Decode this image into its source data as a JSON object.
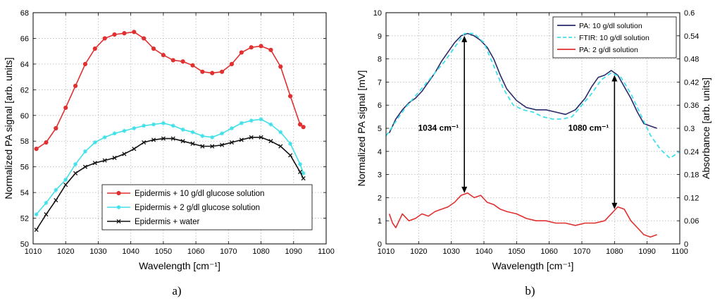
{
  "chart_data": [
    {
      "type": "line",
      "caption": "a)",
      "xlabel": "Wavelength [cm⁻¹]",
      "ylabel": "Normalized PA signal [arb. units]",
      "xlim": [
        1010,
        1100
      ],
      "ylim": [
        50,
        68
      ],
      "xticks": [
        1010,
        1020,
        1030,
        1040,
        1050,
        1060,
        1070,
        1080,
        1090,
        1100
      ],
      "yticks": [
        50,
        52,
        54,
        56,
        58,
        60,
        62,
        64,
        66,
        68
      ],
      "grid": true,
      "legend_position": "bottom-right",
      "x": [
        1011,
        1014,
        1017,
        1020,
        1023,
        1026,
        1029,
        1032,
        1035,
        1038,
        1041,
        1044,
        1047,
        1050,
        1053,
        1056,
        1059,
        1062,
        1065,
        1068,
        1071,
        1074,
        1077,
        1080,
        1083,
        1086,
        1089,
        1092,
        1093
      ],
      "series": [
        {
          "name": "Epidermis + 10 g/dl glucose solution",
          "color": "#e03030",
          "marker": "dot",
          "values": [
            57.4,
            57.9,
            59.0,
            60.6,
            62.3,
            64.0,
            65.2,
            66.0,
            66.3,
            66.4,
            66.5,
            66.0,
            65.2,
            64.7,
            64.3,
            64.2,
            63.9,
            63.4,
            63.3,
            63.4,
            64.0,
            64.9,
            65.3,
            65.4,
            65.1,
            63.8,
            61.5,
            59.3,
            59.1
          ]
        },
        {
          "name": "Epidermis + 2 g/dl glucose solution",
          "color": "#40e0e8",
          "marker": "star",
          "values": [
            52.3,
            53.2,
            54.2,
            55.0,
            56.2,
            57.2,
            57.9,
            58.3,
            58.6,
            58.8,
            59.0,
            59.2,
            59.3,
            59.4,
            59.2,
            58.9,
            58.7,
            58.4,
            58.3,
            58.6,
            59.0,
            59.4,
            59.6,
            59.7,
            59.3,
            58.7,
            57.8,
            56.2,
            55.5
          ]
        },
        {
          "name": "Epidermis + water",
          "color": "#111111",
          "marker": "x",
          "values": [
            51.1,
            52.3,
            53.4,
            54.6,
            55.5,
            56.0,
            56.3,
            56.5,
            56.7,
            57.0,
            57.4,
            57.9,
            58.1,
            58.2,
            58.2,
            58.0,
            57.8,
            57.6,
            57.6,
            57.7,
            57.9,
            58.1,
            58.3,
            58.3,
            58.0,
            57.6,
            56.9,
            55.6,
            55.1
          ]
        }
      ]
    },
    {
      "type": "line",
      "caption": "b)",
      "xlabel": "Wavelength [cm⁻¹]",
      "ylabel": "Normalized PA signal [mV]",
      "y2label": "Absorbance [arb. units]",
      "xlim": [
        1010,
        1100
      ],
      "ylim": [
        0,
        10
      ],
      "y2lim": [
        0,
        0.6
      ],
      "xticks": [
        1010,
        1020,
        1030,
        1040,
        1050,
        1060,
        1070,
        1080,
        1090,
        1100
      ],
      "yticks": [
        0,
        1,
        2,
        3,
        4,
        5,
        6,
        7,
        8,
        9,
        10
      ],
      "y2ticks": [
        "0",
        "0.06",
        "0.12",
        "0.18",
        "0.24",
        "0.3",
        "0.36",
        "0.42",
        "0.48",
        "0.54",
        "0.6"
      ],
      "grid": true,
      "legend_position": "top-right",
      "annotations": [
        {
          "text": "1034 cm⁻¹",
          "x": 1034
        },
        {
          "text": "1080 cm⁻¹",
          "x": 1080
        }
      ],
      "arrows": [
        {
          "x": 1034,
          "y_from": 2.2,
          "y_to": 9.0
        },
        {
          "x": 1080,
          "y_from": 1.5,
          "y_to": 7.3
        }
      ],
      "series": [
        {
          "name": "PA: 10 g/dl solution",
          "color": "#2a2a6a",
          "style": "solid",
          "x": [
            1011,
            1013,
            1015,
            1017,
            1019,
            1021,
            1023,
            1025,
            1027,
            1029,
            1031,
            1033,
            1035,
            1037,
            1039,
            1041,
            1043,
            1045,
            1047,
            1050,
            1053,
            1056,
            1059,
            1062,
            1065,
            1068,
            1071,
            1073,
            1075,
            1077,
            1079,
            1081,
            1083,
            1085,
            1087,
            1089,
            1091,
            1093
          ],
          "values": [
            4.8,
            5.4,
            5.8,
            6.1,
            6.3,
            6.6,
            7.0,
            7.4,
            7.9,
            8.3,
            8.7,
            9.0,
            9.1,
            9.0,
            8.8,
            8.5,
            8.0,
            7.3,
            6.7,
            6.2,
            5.9,
            5.8,
            5.8,
            5.7,
            5.6,
            5.8,
            6.3,
            6.8,
            7.2,
            7.3,
            7.5,
            7.3,
            6.8,
            6.3,
            5.7,
            5.2,
            5.1,
            5.0
          ]
        },
        {
          "name": "FTIR: 10 g/dl solution",
          "color": "#40e0e8",
          "style": "dashed",
          "axis": "right",
          "x": [
            1010,
            1013,
            1016,
            1019,
            1022,
            1025,
            1028,
            1031,
            1034,
            1037,
            1040,
            1043,
            1046,
            1049,
            1052,
            1055,
            1058,
            1061,
            1064,
            1067,
            1070,
            1073,
            1076,
            1079,
            1082,
            1085,
            1088,
            1091,
            1094,
            1097,
            1100
          ],
          "values": [
            0.28,
            0.318,
            0.354,
            0.384,
            0.414,
            0.444,
            0.474,
            0.51,
            0.546,
            0.546,
            0.522,
            0.462,
            0.402,
            0.36,
            0.348,
            0.342,
            0.33,
            0.324,
            0.324,
            0.33,
            0.36,
            0.39,
            0.426,
            0.444,
            0.432,
            0.39,
            0.336,
            0.282,
            0.246,
            0.222,
            0.24
          ]
        },
        {
          "name": "PA: 2 g/dl solution",
          "color": "#e03030",
          "style": "solid",
          "x": [
            1011,
            1012,
            1013,
            1015,
            1017,
            1019,
            1021,
            1023,
            1025,
            1027,
            1029,
            1031,
            1033,
            1035,
            1037,
            1039,
            1041,
            1043,
            1045,
            1047,
            1050,
            1053,
            1056,
            1059,
            1062,
            1065,
            1068,
            1071,
            1074,
            1077,
            1079,
            1081,
            1083,
            1085,
            1087,
            1089,
            1091,
            1093
          ],
          "values": [
            1.3,
            0.9,
            0.7,
            1.3,
            1.0,
            1.1,
            1.3,
            1.2,
            1.4,
            1.5,
            1.6,
            1.8,
            2.1,
            2.2,
            2.0,
            2.1,
            1.8,
            1.7,
            1.5,
            1.4,
            1.3,
            1.1,
            1.0,
            1.0,
            0.9,
            0.9,
            0.8,
            0.9,
            0.9,
            1.0,
            1.3,
            1.6,
            1.5,
            1.0,
            0.7,
            0.4,
            0.3,
            0.4
          ]
        }
      ]
    }
  ]
}
